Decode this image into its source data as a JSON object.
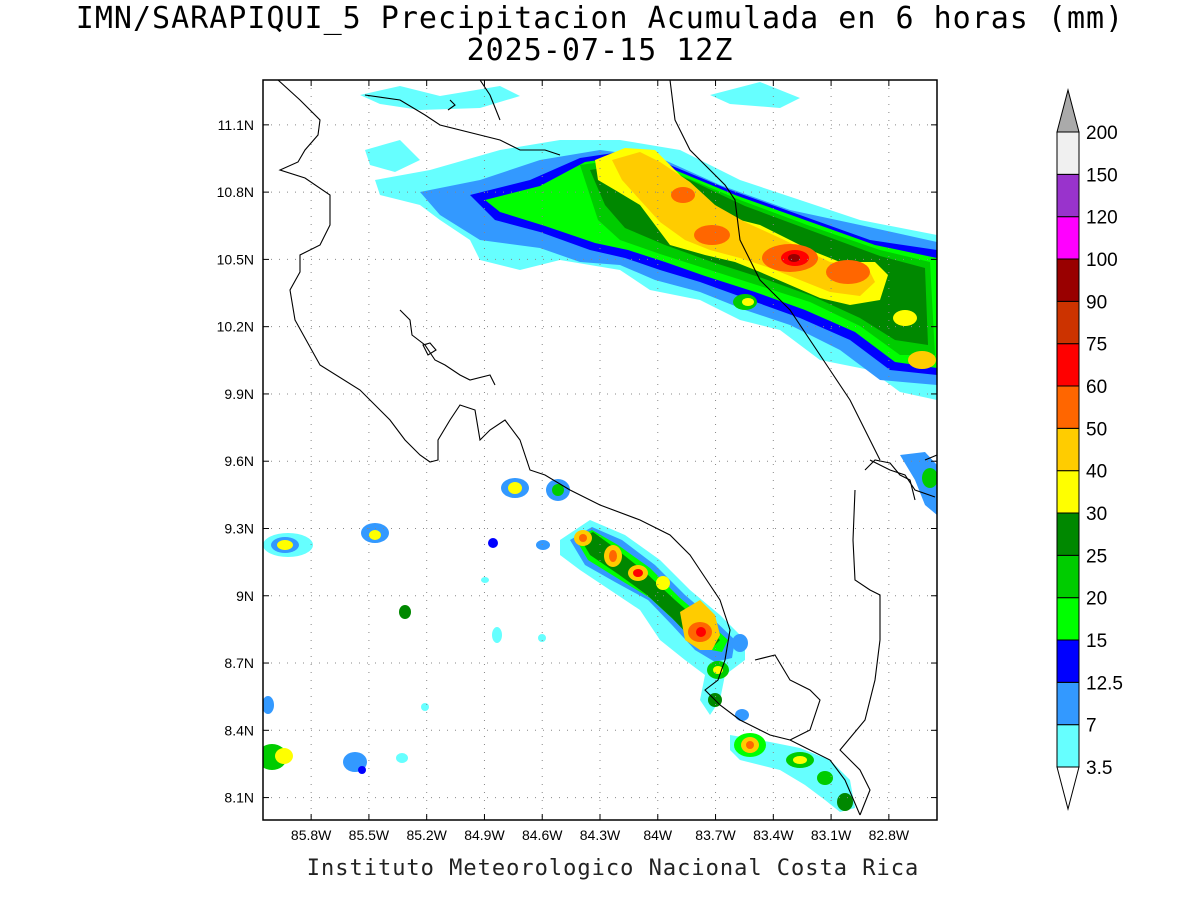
{
  "title": "IMN/SARAPIQUI_5 Precipitacion Acumulada en 6 horas (mm)",
  "subtitle": "2025-07-15 12Z",
  "footer": "Instituto Meteorologico Nacional Costa Rica",
  "map": {
    "lon_range": [
      -86.05,
      -82.55
    ],
    "lat_range": [
      8.0,
      11.3
    ],
    "lat_ticks": [
      {
        "v": 11.1,
        "label": "11.1N"
      },
      {
        "v": 10.8,
        "label": "10.8N"
      },
      {
        "v": 10.5,
        "label": "10.5N"
      },
      {
        "v": 10.2,
        "label": "10.2N"
      },
      {
        "v": 9.9,
        "label": "9.9N"
      },
      {
        "v": 9.6,
        "label": "9.6N"
      },
      {
        "v": 9.3,
        "label": "9.3N"
      },
      {
        "v": 9.0,
        "label": "9N"
      },
      {
        "v": 8.7,
        "label": "8.7N"
      },
      {
        "v": 8.4,
        "label": "8.4N"
      },
      {
        "v": 8.1,
        "label": "8.1N"
      }
    ],
    "lon_ticks": [
      {
        "v": -85.8,
        "label": "85.8W"
      },
      {
        "v": -85.5,
        "label": "85.5W"
      },
      {
        "v": -85.2,
        "label": "85.2W"
      },
      {
        "v": -84.9,
        "label": "84.9W"
      },
      {
        "v": -84.6,
        "label": "84.6W"
      },
      {
        "v": -84.3,
        "label": "84.3W"
      },
      {
        "v": -84.0,
        "label": "84W"
      },
      {
        "v": -83.7,
        "label": "83.7W"
      },
      {
        "v": -83.4,
        "label": "83.4W"
      },
      {
        "v": -83.1,
        "label": "83.1W"
      },
      {
        "v": -82.8,
        "label": "82.8W"
      }
    ],
    "grid": true
  },
  "colorbar": {
    "levels": [
      "3.5",
      "7",
      "12.5",
      "15",
      "20",
      "25",
      "30",
      "40",
      "50",
      "60",
      "75",
      "90",
      "100",
      "120",
      "150",
      "200"
    ],
    "colors": [
      "#66ffff",
      "#3399ff",
      "#0000ff",
      "#00ff00",
      "#00cc00",
      "#008800",
      "#ffff00",
      "#ffcc00",
      "#ff6600",
      "#ff0000",
      "#cc3300",
      "#990000",
      "#ff00ff",
      "#9933cc",
      "#f0f0f0"
    ],
    "under_color": "#ffffff",
    "over_color": "#aaaaaa"
  }
}
